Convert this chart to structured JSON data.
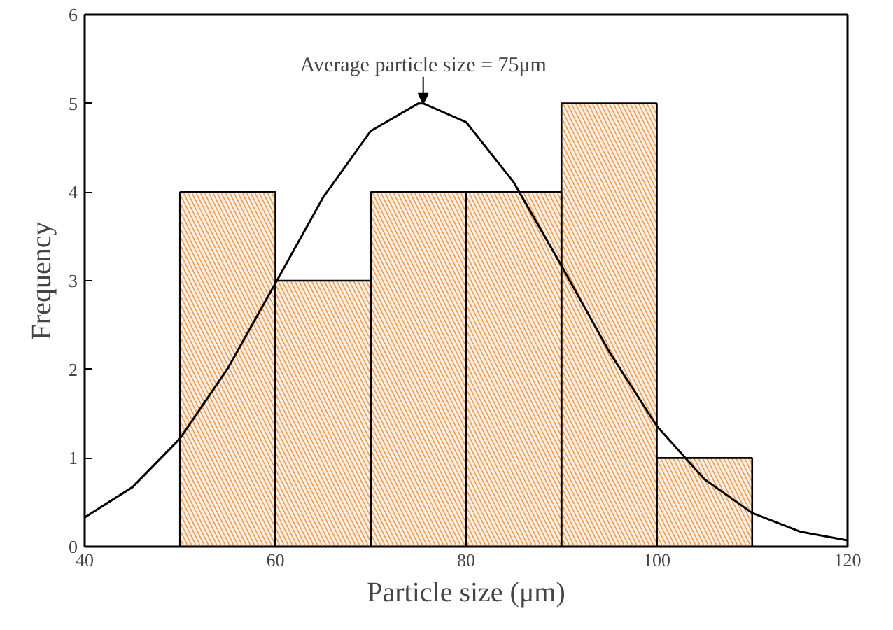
{
  "chart_data": {
    "type": "histogram",
    "xlabel": "Particle size (μm)",
    "ylabel": "Frequency",
    "xlim": [
      40,
      120
    ],
    "xticks": [
      40,
      60,
      80,
      100,
      120
    ],
    "ylim": [
      0,
      6
    ],
    "yticks": [
      0,
      1,
      2,
      3,
      4,
      5,
      6
    ],
    "grid": false,
    "annotations": [
      {
        "text": "Average particle size = 75μm",
        "x": 75.5,
        "y": 5
      }
    ],
    "series": [
      {
        "bins": [
          50,
          60,
          70,
          80,
          90,
          100,
          110
        ],
        "values": [
          4,
          3,
          4,
          4,
          5,
          1
        ],
        "color": "#e89a50"
      },
      {
        "type": "line",
        "color": "#000000",
        "x": [
          40,
          45,
          50,
          55,
          60,
          65,
          70,
          75,
          75.5,
          80,
          85,
          90,
          95,
          100,
          105,
          110,
          115,
          120
        ],
        "values": [
          0.33,
          0.67,
          1.22,
          2.01,
          2.97,
          3.94,
          4.69,
          5.0,
          5.0,
          4.79,
          4.11,
          3.17,
          2.2,
          1.36,
          0.76,
          0.38,
          0.17,
          0.07
        ]
      }
    ]
  }
}
